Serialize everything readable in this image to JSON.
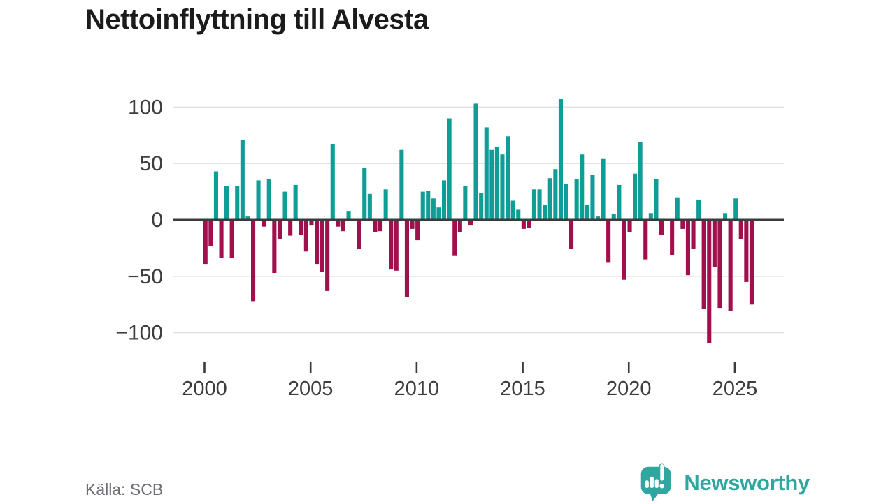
{
  "title": "Nettoinflyttning till Alvesta",
  "source": "Källa: SCB",
  "branding": {
    "name": "Newsworthy",
    "icon": "newsworthy-speech-bubble-barchart-icon",
    "color": "#2fa7a0"
  },
  "colors": {
    "positive_bar": "#0f9e96",
    "negative_bar": "#a1104d",
    "gridline": "#e2e2e2",
    "zero_axis": "#3b3b3b",
    "tick_label": "#3d3d3d",
    "title": "#1b1b1b",
    "source_text": "#6b6b74",
    "background": "#ffffff"
  },
  "chart_data": {
    "type": "bar",
    "title": "Nettoinflyttning till Alvesta",
    "frequency": "quarterly",
    "start_year": 2000,
    "quarters_per_year": 4,
    "xlabel": "",
    "ylabel": "",
    "y_ticks": [
      100,
      50,
      0,
      -50,
      -100
    ],
    "x_tick_years": [
      2000,
      2005,
      2010,
      2015,
      2020,
      2025
    ],
    "ylim": [
      -118,
      112
    ],
    "grid": true,
    "legend": "none",
    "series": [
      {
        "name": "Nettoinflyttning",
        "values": [
          -39,
          -23,
          43,
          -34,
          30,
          -34,
          30,
          71,
          3,
          -72,
          35,
          -6,
          36,
          -47,
          -17,
          25,
          -14,
          31,
          -13,
          -28,
          -5,
          -39,
          -46,
          -63,
          67,
          -6,
          -10,
          8,
          0,
          -26,
          46,
          23,
          -11,
          -10,
          27,
          -44,
          -45,
          62,
          -68,
          -8,
          -18,
          25,
          26,
          19,
          11,
          35,
          90,
          -32,
          -11,
          30,
          -5,
          103,
          24,
          82,
          62,
          65,
          58,
          74,
          17,
          9,
          -8,
          -7,
          27,
          27,
          13,
          37,
          45,
          107,
          32,
          -26,
          36,
          58,
          13,
          40,
          3,
          54,
          -38,
          5,
          31,
          -53,
          -11,
          41,
          69,
          -35,
          6,
          36,
          -13,
          0,
          -31,
          20,
          -8,
          -49,
          -26,
          18,
          -79,
          -109,
          -42,
          -78,
          6,
          -81,
          19,
          -17,
          -55,
          -75
        ]
      }
    ]
  }
}
